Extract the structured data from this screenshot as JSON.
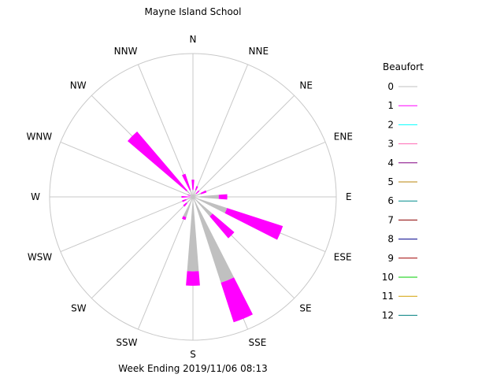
{
  "chart_data": {
    "type": "wind-rose",
    "title": "Mayne Island School",
    "footer": "Week Ending 2019/11/06 08:13",
    "directions": [
      "N",
      "NNE",
      "NE",
      "ENE",
      "E",
      "ESE",
      "SE",
      "SSE",
      "S",
      "SSW",
      "SW",
      "WSW",
      "W",
      "WNW",
      "NW",
      "NNW"
    ],
    "legend": {
      "title": "Beaufort",
      "entries": [
        {
          "label": "0",
          "color": "#c0c0c0"
        },
        {
          "label": "1",
          "color": "#ff00ff"
        },
        {
          "label": "2",
          "color": "#00ffff"
        },
        {
          "label": "3",
          "color": "#ff69b4"
        },
        {
          "label": "4",
          "color": "#800080"
        },
        {
          "label": "5",
          "color": "#b8860b"
        },
        {
          "label": "6",
          "color": "#008b8b"
        },
        {
          "label": "7",
          "color": "#8b0000"
        },
        {
          "label": "8",
          "color": "#00008b"
        },
        {
          "label": "9",
          "color": "#a00000"
        },
        {
          "label": "10",
          "color": "#00cc00"
        },
        {
          "label": "11",
          "color": "#d2a000"
        },
        {
          "label": "12",
          "color": "#008080"
        }
      ]
    },
    "series": [
      {
        "name": "0",
        "values": [
          0.05,
          0.05,
          0.03,
          0.06,
          0.18,
          0.25,
          0.18,
          0.63,
          0.52,
          0.15,
          0.06,
          0.05,
          0.02,
          0.02,
          0.06,
          0.05
        ]
      },
      {
        "name": "1",
        "values": [
          0.07,
          0.03,
          0.03,
          0.04,
          0.06,
          0.41,
          0.2,
          0.29,
          0.1,
          0.02,
          0.03,
          0.03,
          0.06,
          0.02,
          0.54,
          0.12
        ]
      }
    ]
  }
}
